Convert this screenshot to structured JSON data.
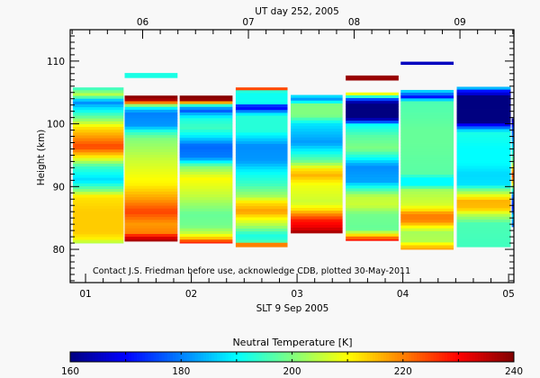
{
  "chart_data": {
    "type": "heatmap",
    "title_top_axis": "UT day 252, 2005",
    "xlabel": "SLT 9 Sep 2005",
    "ylabel": "Height (km)",
    "annotation": "Contact J.S. Friedman before use, acknowledge CDB, plotted 30-May-2011",
    "xlim": [
      0.855,
      5.05
    ],
    "ylim": [
      74.7,
      115
    ],
    "x_ticks": [
      1,
      2,
      3,
      4,
      5
    ],
    "x_tick_labels": [
      "01",
      "02",
      "03",
      "04",
      "05"
    ],
    "top_axis_offset_hours": 4.46,
    "top_ticks": [
      6,
      7,
      8,
      9
    ],
    "top_tick_labels": [
      "06",
      "07",
      "08",
      "09"
    ],
    "y_ticks": [
      80,
      90,
      100,
      110
    ],
    "y_tick_labels": [
      "80",
      "90",
      "100",
      "110"
    ],
    "colorbar": {
      "title": "Neutral Temperature [K]",
      "range": [
        160,
        240
      ],
      "colormap": "jet",
      "tick_values": [
        160,
        180,
        200,
        220,
        240
      ],
      "tick_labels": [
        "160",
        "180",
        "200",
        "220",
        "240"
      ]
    },
    "columns": [
      {
        "slt": [
          0.88,
          1.36
        ],
        "profile": [
          [
            105.8,
            193
          ],
          [
            104.6,
            205
          ],
          [
            103.5,
            180
          ],
          [
            102.2,
            190
          ],
          [
            100.8,
            200
          ],
          [
            99.4,
            212
          ],
          [
            97.9,
            218
          ],
          [
            96.3,
            225
          ],
          [
            94.9,
            213
          ],
          [
            93.2,
            195
          ],
          [
            91.0,
            187
          ],
          [
            89.4,
            200
          ],
          [
            88.4,
            212
          ],
          [
            86.0,
            214
          ],
          [
            82.7,
            214
          ],
          [
            81.7,
            211
          ],
          [
            81.0,
            203
          ]
        ]
      },
      {
        "slt": [
          1.37,
          1.87
        ],
        "profile": [
          [
            104.5,
            240
          ],
          [
            103.7,
            236
          ],
          [
            103.2,
            212
          ],
          [
            102.7,
            192
          ],
          [
            101.8,
            180
          ],
          [
            99.6,
            182
          ],
          [
            98.9,
            192
          ],
          [
            97.7,
            200
          ],
          [
            94.1,
            206
          ],
          [
            90.3,
            211
          ],
          [
            87.9,
            218
          ],
          [
            86.0,
            225
          ],
          [
            84.1,
            218
          ],
          [
            82.5,
            220
          ],
          [
            82.1,
            230
          ],
          [
            81.3,
            238
          ]
        ]
      },
      {
        "slt": [
          1.89,
          2.39
        ],
        "profile": [
          [
            104.5,
            240
          ],
          [
            103.7,
            238
          ],
          [
            103.3,
            212
          ],
          [
            102.9,
            192
          ],
          [
            102.2,
            175
          ],
          [
            101.5,
            185
          ],
          [
            100.8,
            192
          ],
          [
            99.4,
            195
          ],
          [
            98.2,
            190
          ],
          [
            96.5,
            178
          ],
          [
            94.6,
            180
          ],
          [
            93.9,
            190
          ],
          [
            93.2,
            200
          ],
          [
            91.3,
            210
          ],
          [
            88.4,
            205
          ],
          [
            85.6,
            198
          ],
          [
            83.7,
            199
          ],
          [
            82.5,
            206
          ],
          [
            81.8,
            214
          ],
          [
            81.0,
            230
          ]
        ]
      },
      {
        "slt": [
          2.42,
          2.91
        ],
        "profile": [
          [
            105.8,
            240
          ],
          [
            105.1,
            191
          ],
          [
            103.2,
            191
          ],
          [
            102.7,
            165
          ],
          [
            102.0,
            180
          ],
          [
            101.3,
            193
          ],
          [
            98.9,
            193
          ],
          [
            96.5,
            181
          ],
          [
            94.1,
            182
          ],
          [
            92.3,
            190
          ],
          [
            90.3,
            195
          ],
          [
            88.4,
            203
          ],
          [
            87.5,
            212
          ],
          [
            86.0,
            218
          ],
          [
            84.9,
            210
          ],
          [
            83.7,
            203
          ],
          [
            82.3,
            192
          ],
          [
            81.3,
            194
          ],
          [
            80.9,
            220
          ],
          [
            80.4,
            220
          ]
        ]
      },
      {
        "slt": [
          2.94,
          3.43
        ],
        "profile": [
          [
            104.6,
            190
          ],
          [
            103.9,
            182
          ],
          [
            103.0,
            200
          ],
          [
            101.3,
            200
          ],
          [
            99.9,
            188
          ],
          [
            97.0,
            182
          ],
          [
            95.6,
            190
          ],
          [
            94.1,
            198
          ],
          [
            92.7,
            212
          ],
          [
            91.8,
            216
          ],
          [
            90.3,
            209
          ],
          [
            87.5,
            206
          ],
          [
            86.5,
            211
          ],
          [
            85.6,
            219
          ],
          [
            84.6,
            228
          ],
          [
            83.4,
            232
          ],
          [
            82.6,
            238
          ]
        ]
      },
      {
        "slt": [
          3.46,
          3.96
        ],
        "profile": [
          [
            105.0,
            217
          ],
          [
            104.5,
            200
          ],
          [
            104.0,
            180
          ],
          [
            103.6,
            165
          ],
          [
            103.0,
            160
          ],
          [
            100.9,
            160
          ],
          [
            100.4,
            172
          ],
          [
            99.9,
            190
          ],
          [
            98.0,
            197
          ],
          [
            96.0,
            200
          ],
          [
            94.6,
            191
          ],
          [
            93.2,
            181
          ],
          [
            90.8,
            183
          ],
          [
            89.9,
            192
          ],
          [
            88.4,
            205
          ],
          [
            87.0,
            206
          ],
          [
            85.6,
            199
          ],
          [
            83.2,
            198
          ],
          [
            82.5,
            208
          ],
          [
            82.0,
            218
          ],
          [
            81.4,
            230
          ]
        ]
      },
      {
        "slt": [
          3.98,
          4.48
        ],
        "profile": [
          [
            105.4,
            190
          ],
          [
            104.2,
            170
          ],
          [
            103.9,
            185
          ],
          [
            103.4,
            196
          ],
          [
            98.9,
            198
          ],
          [
            97.0,
            198
          ],
          [
            92.0,
            197
          ],
          [
            91.3,
            190
          ],
          [
            90.3,
            190
          ],
          [
            89.4,
            203
          ],
          [
            87.0,
            207
          ],
          [
            86.3,
            212
          ],
          [
            85.6,
            220
          ],
          [
            84.6,
            220
          ],
          [
            84.1,
            216
          ],
          [
            83.7,
            211
          ],
          [
            82.7,
            203
          ],
          [
            81.3,
            204
          ],
          [
            80.8,
            211
          ],
          [
            80.0,
            218
          ]
        ]
      },
      {
        "slt": [
          4.51,
          5.02
        ],
        "profile": [
          [
            105.9,
            192
          ],
          [
            105.3,
            172
          ],
          [
            104.6,
            165
          ],
          [
            104.4,
            160
          ],
          [
            100.3,
            160
          ],
          [
            99.9,
            168
          ],
          [
            99.3,
            180
          ],
          [
            98.7,
            192
          ],
          [
            96.0,
            190
          ],
          [
            93.7,
            190
          ],
          [
            92.0,
            187
          ],
          [
            90.3,
            188
          ],
          [
            89.4,
            200
          ],
          [
            88.4,
            210
          ],
          [
            87.7,
            216
          ],
          [
            86.5,
            215
          ],
          [
            85.6,
            205
          ],
          [
            84.1,
            196
          ],
          [
            80.4,
            195
          ]
        ]
      },
      {
        "slt": [
          5.03,
          5.05
        ],
        "profile": [
          [
            100.9,
            160
          ],
          [
            99.4,
            175
          ],
          [
            97.0,
            185
          ],
          [
            95.6,
            192
          ],
          [
            93.7,
            200
          ],
          [
            93.0,
            212
          ],
          [
            91.8,
            225
          ],
          [
            90.8,
            215
          ],
          [
            89.9,
            200
          ],
          [
            88.4,
            178
          ],
          [
            86.5,
            172
          ],
          [
            85.3,
            188
          ],
          [
            83.6,
            178
          ]
        ]
      }
    ],
    "isolated_bars": [
      {
        "slt": [
          1.37,
          1.87
        ],
        "km": [
          107.3,
          108.1
        ],
        "temp": 192
      },
      {
        "slt": [
          3.46,
          3.96
        ],
        "km": [
          106.9,
          107.7
        ],
        "temp": 238
      },
      {
        "slt": [
          3.98,
          4.48
        ],
        "km": [
          109.4,
          109.9
        ],
        "temp": 165
      }
    ]
  }
}
